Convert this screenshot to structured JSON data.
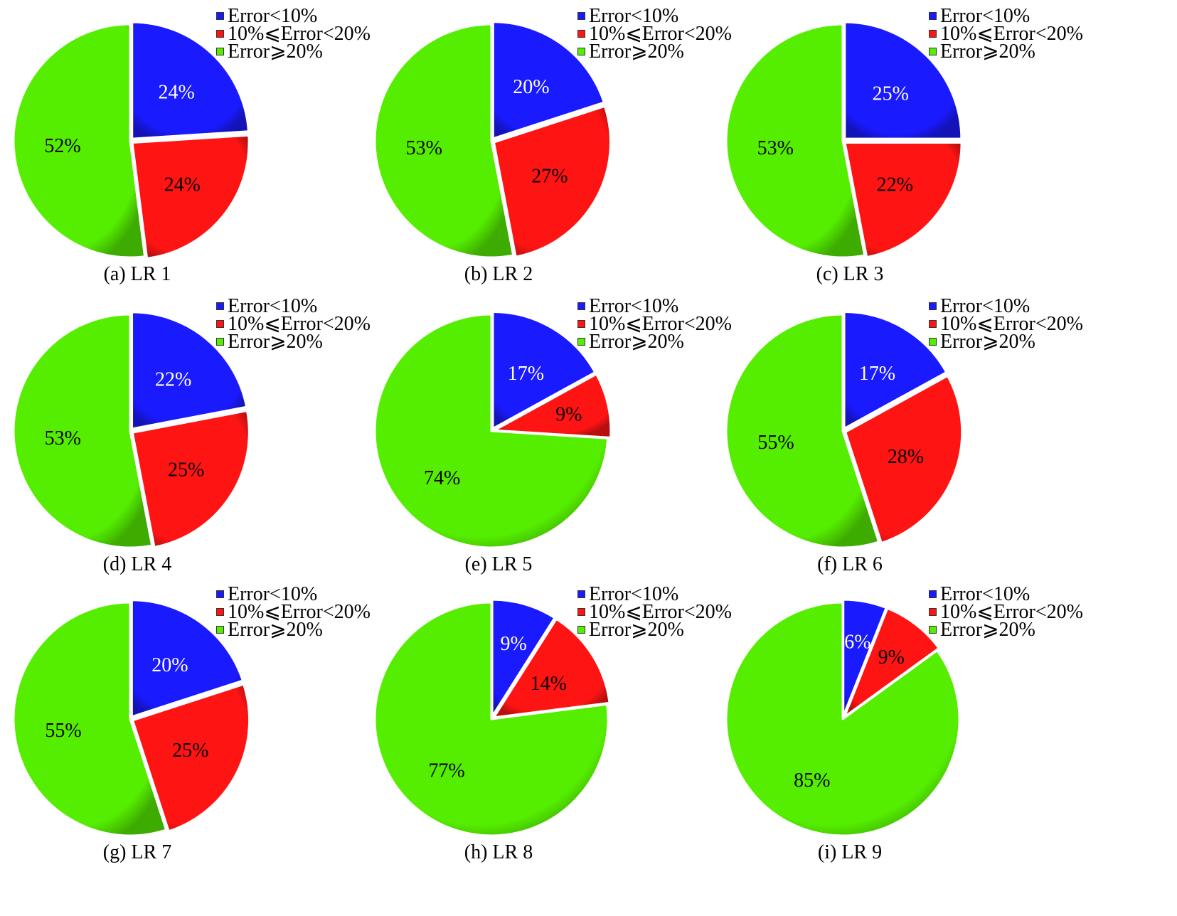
{
  "legend_labels": [
    "Error<10%",
    "10%⩽Error<20%",
    "Error⩾20%"
  ],
  "colors": {
    "low": "#1a1aff",
    "mid": "#ff1414",
    "high": "#55ee00"
  },
  "chart_data": [
    {
      "type": "pie",
      "caption": "(a) LR 1",
      "categories": [
        "Error<10%",
        "10%⩽Error<20%",
        "Error⩾20%"
      ],
      "values": [
        24,
        24,
        52
      ],
      "labels": [
        "24%",
        "24%",
        "52%"
      ]
    },
    {
      "type": "pie",
      "caption": "(b) LR 2",
      "categories": [
        "Error<10%",
        "10%⩽Error<20%",
        "Error⩾20%"
      ],
      "values": [
        20,
        27,
        53
      ],
      "labels": [
        "20%",
        "27%",
        "53%"
      ]
    },
    {
      "type": "pie",
      "caption": "(c) LR 3",
      "categories": [
        "Error<10%",
        "10%⩽Error<20%",
        "Error⩾20%"
      ],
      "values": [
        25,
        22,
        53
      ],
      "labels": [
        "25%",
        "22%",
        "53%"
      ]
    },
    {
      "type": "pie",
      "caption": "(d) LR 4",
      "categories": [
        "Error<10%",
        "10%⩽Error<20%",
        "Error⩾20%"
      ],
      "values": [
        22,
        25,
        53
      ],
      "labels": [
        "22%",
        "25%",
        "53%"
      ]
    },
    {
      "type": "pie",
      "caption": "(e) LR 5",
      "categories": [
        "Error<10%",
        "10%⩽Error<20%",
        "Error⩾20%"
      ],
      "values": [
        17,
        9,
        74
      ],
      "labels": [
        "17%",
        "9%",
        "74%"
      ]
    },
    {
      "type": "pie",
      "caption": "(f) LR 6",
      "categories": [
        "Error<10%",
        "10%⩽Error<20%",
        "Error⩾20%"
      ],
      "values": [
        17,
        28,
        55
      ],
      "labels": [
        "17%",
        "28%",
        "55%"
      ]
    },
    {
      "type": "pie",
      "caption": "(g) LR 7",
      "categories": [
        "Error<10%",
        "10%⩽Error<20%",
        "Error⩾20%"
      ],
      "values": [
        20,
        25,
        55
      ],
      "labels": [
        "20%",
        "25%",
        "55%"
      ]
    },
    {
      "type": "pie",
      "caption": "(h) LR 8",
      "categories": [
        "Error<10%",
        "10%⩽Error<20%",
        "Error⩾20%"
      ],
      "values": [
        9,
        14,
        77
      ],
      "labels": [
        "9%",
        "14%",
        "77%"
      ]
    },
    {
      "type": "pie",
      "caption": "(i) LR 9",
      "categories": [
        "Error<10%",
        "10%⩽Error<20%",
        "Error⩾20%"
      ],
      "values": [
        6,
        9,
        85
      ],
      "labels": [
        "6%",
        "9%",
        "85%"
      ]
    }
  ]
}
